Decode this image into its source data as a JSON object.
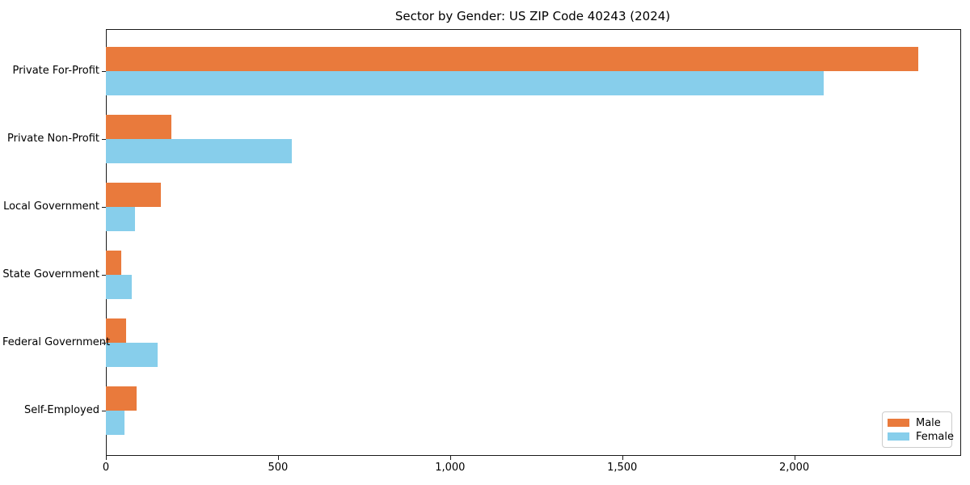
{
  "chart_data": {
    "type": "bar",
    "orientation": "horizontal",
    "title": "Sector by Gender: US ZIP Code 40243 (2024)",
    "categories": [
      "Private For-Profit",
      "Private Non-Profit",
      "Local Government",
      "State Government",
      "Federal Government",
      "Self-Employed"
    ],
    "series": [
      {
        "name": "Male",
        "color": "#E97A3C",
        "values": [
          2360,
          190,
          160,
          45,
          59,
          89
        ]
      },
      {
        "name": "Female",
        "color": "#87CEEB",
        "values": [
          2085,
          540,
          85,
          76,
          150,
          55
        ]
      }
    ],
    "xlabel": "",
    "ylabel": "",
    "xlim": [
      0,
      2480
    ],
    "xticks": [
      0,
      500,
      1000,
      1500,
      2000
    ],
    "xtick_labels": [
      "0",
      "500",
      "1,000",
      "1,500",
      "2,000"
    ],
    "grid": false,
    "legend": {
      "position": "lower right",
      "entries": [
        "Male",
        "Female"
      ]
    }
  }
}
